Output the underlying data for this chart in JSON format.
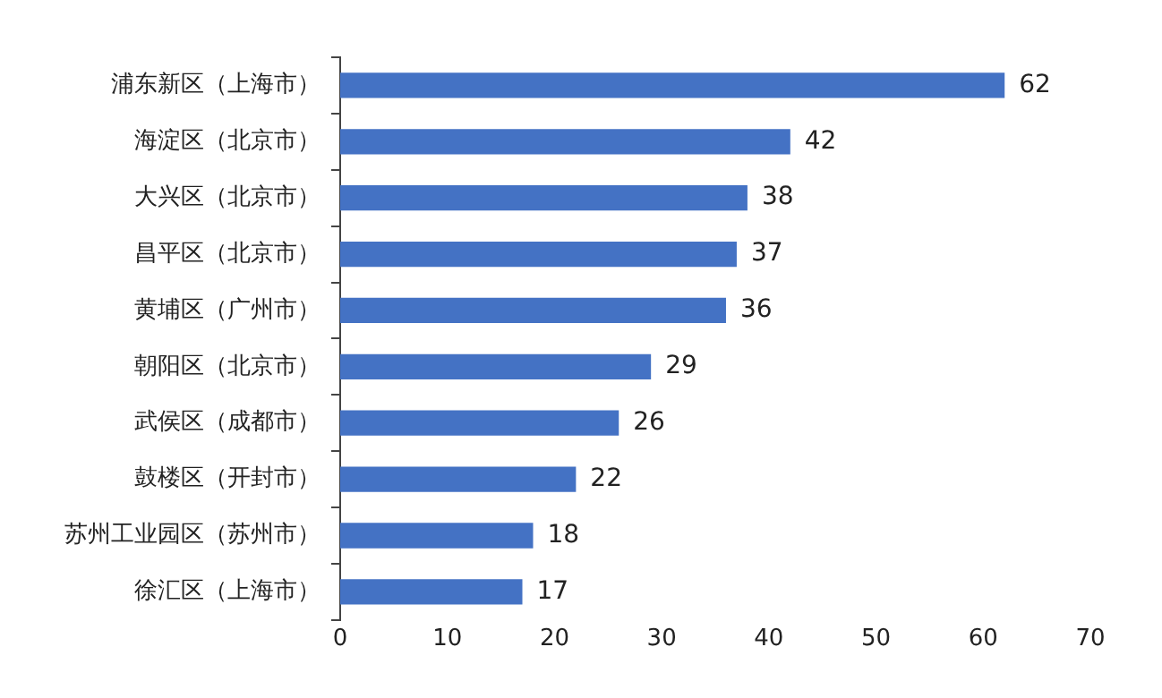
{
  "chart_data": {
    "type": "bar",
    "orientation": "horizontal",
    "categories": [
      "浦东新区（上海市）",
      "海淀区（北京市）",
      "大兴区（北京市）",
      "昌平区（北京市）",
      "黄埔区（广州市）",
      "朝阳区（北京市）",
      "武侯区（成都市）",
      "鼓楼区（开封市）",
      "苏州工业园区（苏州市）",
      "徐汇区（上海市）"
    ],
    "values": [
      62,
      42,
      38,
      37,
      36,
      29,
      26,
      22,
      18,
      17
    ],
    "color": "#4472c4",
    "xlim": [
      0,
      70
    ],
    "xticks": [
      0,
      10,
      20,
      30,
      40,
      50,
      60,
      70
    ],
    "grid": false,
    "legend": false,
    "data_labels": true
  }
}
